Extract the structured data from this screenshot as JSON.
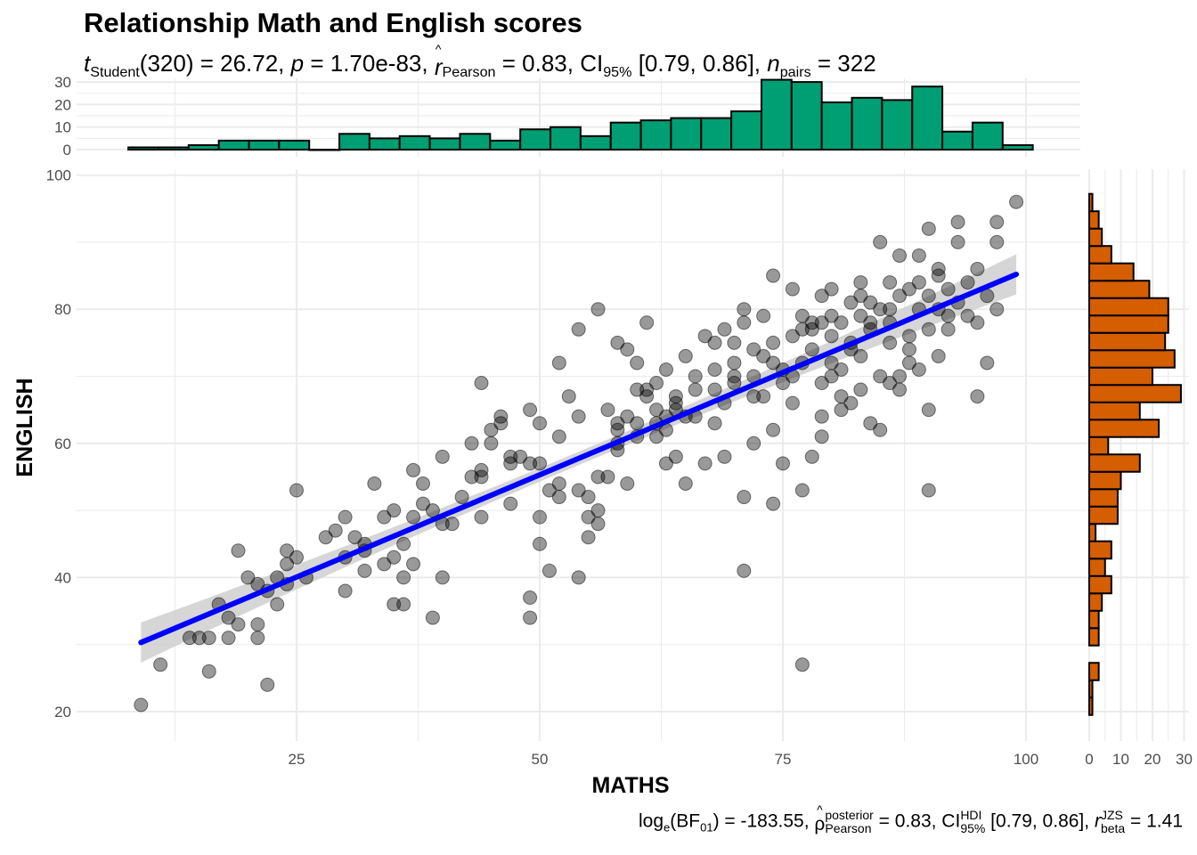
{
  "title": "Relationship Math and English scores",
  "subtitle": {
    "t_sym": "t",
    "t_sub": "Student",
    "df": "(320)",
    "t_val": " = 26.72, ",
    "p_sym": "p",
    "p_val": " = 1.70e-83, ",
    "r_sym": "r",
    "r_hat": "^",
    "r_sub": "Pearson",
    "r_val": " = 0.83, CI",
    "ci_sub": "95%",
    "ci_val": " [0.79, 0.86], ",
    "n_sym": "n",
    "n_sub": "pairs",
    "n_val": " = 322"
  },
  "caption": {
    "log": "log",
    "log_sub": "e",
    "bf": "(BF",
    "bf_sub": "01",
    "bf_val": ") = -183.55, ",
    "rho": "ρ",
    "rho_hat": "^",
    "rho_sup": "posterior",
    "rho_sub": "Pearson",
    "rho_val": " = 0.83, CI",
    "ci_sup": "HDI",
    "ci_sub": "95%",
    "ci_val": " [0.79, 0.86], ",
    "r_sym": "r",
    "r_sup": "JZS",
    "r_sub": "beta",
    "r_val": " = 1.41"
  },
  "colors": {
    "points": "#000000",
    "line": "#0000ff",
    "band": "#cccccc",
    "top_hist": "#009e73",
    "right_hist": "#d55e00",
    "grid": "#ebebeb"
  },
  "chart_data": {
    "type": "scatter",
    "title": "Relationship Math and English scores",
    "xlabel": "MATHS",
    "ylabel": "ENGLISH",
    "xlim": [
      7,
      102
    ],
    "ylim": [
      17,
      100
    ],
    "xticks": [
      "25",
      "50",
      "75",
      "100"
    ],
    "yticks": [
      "20",
      "40",
      "60",
      "80",
      "100"
    ],
    "grid": true,
    "regression": {
      "x0": 9,
      "y0": 30.3,
      "x1": 99,
      "y1": 85.2,
      "ci_halfwidth_ends": 3.0,
      "ci_halfwidth_mid": 1.0
    },
    "points": [
      [
        9,
        21
      ],
      [
        11,
        27
      ],
      [
        16,
        26
      ],
      [
        16,
        31
      ],
      [
        18,
        31
      ],
      [
        19,
        44
      ],
      [
        19,
        33
      ],
      [
        20,
        40
      ],
      [
        21,
        39
      ],
      [
        21,
        31
      ],
      [
        22,
        24
      ],
      [
        23,
        36
      ],
      [
        24,
        44
      ],
      [
        24,
        39
      ],
      [
        25,
        53
      ],
      [
        25,
        43
      ],
      [
        30,
        49
      ],
      [
        30,
        38
      ],
      [
        30,
        43
      ],
      [
        31,
        46
      ],
      [
        32,
        45
      ],
      [
        32,
        41
      ],
      [
        33,
        54
      ],
      [
        34,
        49
      ],
      [
        35,
        50
      ],
      [
        35,
        43
      ],
      [
        35,
        36
      ],
      [
        36,
        40
      ],
      [
        36,
        36
      ],
      [
        37,
        42
      ],
      [
        37,
        56
      ],
      [
        38,
        54
      ],
      [
        39,
        34
      ],
      [
        40,
        40
      ],
      [
        40,
        58
      ],
      [
        41,
        48
      ],
      [
        42,
        52
      ],
      [
        43,
        60
      ],
      [
        43,
        55
      ],
      [
        44,
        56
      ],
      [
        44,
        49
      ],
      [
        44,
        69
      ],
      [
        45,
        62
      ],
      [
        46,
        63
      ],
      [
        47,
        58
      ],
      [
        47,
        57
      ],
      [
        49,
        57
      ],
      [
        49,
        37
      ],
      [
        49,
        34
      ],
      [
        49,
        65
      ],
      [
        50,
        57
      ],
      [
        50,
        63
      ],
      [
        50,
        45
      ],
      [
        51,
        41
      ],
      [
        52,
        72
      ],
      [
        52,
        54
      ],
      [
        52,
        61
      ],
      [
        53,
        67
      ],
      [
        54,
        64
      ],
      [
        54,
        53
      ],
      [
        54,
        40
      ],
      [
        54,
        77
      ],
      [
        55,
        46
      ],
      [
        55,
        52
      ],
      [
        56,
        80
      ],
      [
        56,
        50
      ],
      [
        56,
        48
      ],
      [
        57,
        55
      ],
      [
        58,
        75
      ],
      [
        58,
        62
      ],
      [
        58,
        59
      ],
      [
        59,
        74
      ],
      [
        59,
        54
      ],
      [
        60,
        72
      ],
      [
        60,
        68
      ],
      [
        61,
        78
      ],
      [
        61,
        67
      ],
      [
        62,
        69
      ],
      [
        62,
        61
      ],
      [
        63,
        71
      ],
      [
        63,
        57
      ],
      [
        64,
        66
      ],
      [
        64,
        58
      ],
      [
        65,
        73
      ],
      [
        65,
        54
      ],
      [
        66,
        70
      ],
      [
        66,
        64
      ],
      [
        67,
        76
      ],
      [
        67,
        57
      ],
      [
        68,
        75
      ],
      [
        68,
        68
      ],
      [
        69,
        77
      ],
      [
        69,
        58
      ],
      [
        70,
        70
      ],
      [
        70,
        75
      ],
      [
        71,
        41
      ],
      [
        71,
        78
      ],
      [
        71,
        52
      ],
      [
        72,
        67
      ],
      [
        72,
        60
      ],
      [
        73,
        79
      ],
      [
        73,
        73
      ],
      [
        74,
        85
      ],
      [
        74,
        62
      ],
      [
        74,
        51
      ],
      [
        75,
        69
      ],
      [
        75,
        57
      ],
      [
        76,
        83
      ],
      [
        76,
        66
      ],
      [
        77,
        27
      ],
      [
        77,
        53
      ],
      [
        77,
        79
      ],
      [
        78,
        74
      ],
      [
        78,
        58
      ],
      [
        79,
        82
      ],
      [
        79,
        64
      ],
      [
        79,
        61
      ],
      [
        80,
        83
      ],
      [
        80,
        70
      ],
      [
        81,
        78
      ],
      [
        81,
        67
      ],
      [
        82,
        74
      ],
      [
        82,
        81
      ],
      [
        83,
        84
      ],
      [
        83,
        68
      ],
      [
        84,
        63
      ],
      [
        84,
        77
      ],
      [
        85,
        90
      ],
      [
        85,
        62
      ],
      [
        86,
        75
      ],
      [
        86,
        84
      ],
      [
        87,
        88
      ],
      [
        87,
        70
      ],
      [
        88,
        83
      ],
      [
        88,
        76
      ],
      [
        89,
        88
      ],
      [
        89,
        71
      ],
      [
        90,
        92
      ],
      [
        90,
        53
      ],
      [
        90,
        65
      ],
      [
        91,
        86
      ],
      [
        91,
        73
      ],
      [
        92,
        83
      ],
      [
        92,
        77
      ],
      [
        93,
        93
      ],
      [
        93,
        90
      ],
      [
        94,
        79
      ],
      [
        95,
        86
      ],
      [
        95,
        78
      ],
      [
        96,
        72
      ],
      [
        97,
        93
      ],
      [
        97,
        80
      ],
      [
        97,
        90
      ],
      [
        99,
        96
      ],
      [
        95,
        67
      ],
      [
        88,
        72
      ],
      [
        86,
        69
      ],
      [
        87,
        68
      ],
      [
        83,
        73
      ],
      [
        81,
        71
      ],
      [
        80,
        72
      ],
      [
        78,
        78
      ],
      [
        76,
        76
      ],
      [
        74,
        72
      ],
      [
        73,
        67
      ],
      [
        71,
        80
      ],
      [
        72,
        74
      ],
      [
        70,
        69
      ],
      [
        69,
        66
      ],
      [
        68,
        63
      ],
      [
        65,
        64
      ],
      [
        64,
        65
      ],
      [
        63,
        64
      ],
      [
        62,
        63
      ],
      [
        61,
        68
      ],
      [
        60,
        63
      ],
      [
        59,
        64
      ],
      [
        58,
        63
      ],
      [
        56,
        55
      ],
      [
        55,
        49
      ],
      [
        52,
        52
      ],
      [
        51,
        53
      ],
      [
        50,
        49
      ],
      [
        48,
        58
      ],
      [
        47,
        51
      ],
      [
        46,
        64
      ],
      [
        45,
        60
      ],
      [
        44,
        55
      ],
      [
        40,
        48
      ],
      [
        39,
        50
      ],
      [
        38,
        51
      ],
      [
        37,
        49
      ],
      [
        36,
        45
      ],
      [
        34,
        42
      ],
      [
        32,
        44
      ],
      [
        29,
        47
      ],
      [
        28,
        46
      ],
      [
        26,
        40
      ],
      [
        24,
        42
      ],
      [
        23,
        40
      ],
      [
        22,
        38
      ],
      [
        21,
        33
      ],
      [
        18,
        34
      ],
      [
        17,
        36
      ],
      [
        15,
        31
      ],
      [
        14,
        31
      ],
      [
        85,
        80
      ],
      [
        86,
        78
      ],
      [
        89,
        80
      ],
      [
        90,
        82
      ],
      [
        91,
        80
      ],
      [
        84,
        78
      ],
      [
        83,
        79
      ],
      [
        79,
        78
      ],
      [
        78,
        77
      ],
      [
        80,
        76
      ],
      [
        82,
        75
      ],
      [
        77,
        72
      ],
      [
        75,
        71
      ],
      [
        76,
        70
      ],
      [
        79,
        69
      ],
      [
        81,
        65
      ],
      [
        82,
        66
      ],
      [
        85,
        70
      ],
      [
        88,
        74
      ],
      [
        90,
        77
      ],
      [
        92,
        79
      ],
      [
        93,
        81
      ],
      [
        94,
        84
      ],
      [
        96,
        82
      ],
      [
        91,
        85
      ],
      [
        89,
        84
      ],
      [
        87,
        82
      ],
      [
        86,
        80
      ],
      [
        84,
        81
      ],
      [
        83,
        82
      ],
      [
        80,
        79
      ],
      [
        77,
        77
      ],
      [
        74,
        75
      ],
      [
        72,
        70
      ],
      [
        70,
        72
      ],
      [
        68,
        71
      ],
      [
        66,
        68
      ],
      [
        64,
        67
      ],
      [
        62,
        65
      ],
      [
        60,
        61
      ],
      [
        58,
        60
      ],
      [
        57,
        65
      ],
      [
        63,
        62
      ]
    ],
    "x_histogram": {
      "bin_start": 7.7,
      "bin_width": 3.1,
      "counts": [
        1,
        1,
        2,
        4,
        4,
        4,
        0,
        7,
        5,
        6,
        5,
        7,
        4,
        9,
        10,
        6,
        12,
        13,
        14,
        14,
        17,
        31,
        30,
        21,
        23,
        22,
        28,
        8,
        12,
        2
      ],
      "yticks": [
        "0",
        "10",
        "20",
        "30"
      ]
    },
    "y_histogram": {
      "bin_start": 19.5,
      "bin_width": 2.59,
      "counts": [
        1,
        1,
        3,
        0,
        3,
        3,
        4,
        7,
        5,
        7,
        2,
        9,
        9,
        10,
        16,
        6,
        22,
        16,
        29,
        20,
        27,
        24,
        25,
        25,
        19,
        14,
        7,
        4,
        3,
        1
      ],
      "xticks": [
        "0",
        "10",
        "20",
        "30"
      ]
    }
  }
}
